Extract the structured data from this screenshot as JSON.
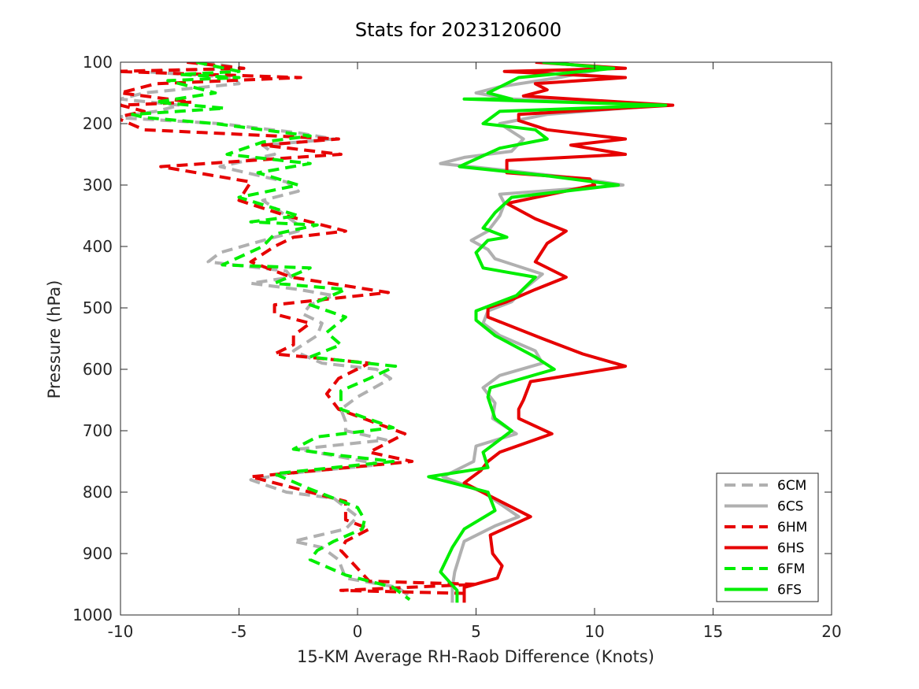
{
  "chart_data": {
    "type": "line",
    "title": "Stats for 2023120600",
    "xlabel": "15-KM Average RH-Raob Difference (Knots)",
    "ylabel": "Pressure (hPa)",
    "xlim": [
      -10,
      20
    ],
    "ylim": [
      100,
      1000
    ],
    "y_reversed": true,
    "xticks": [
      "-10",
      "-5",
      "0",
      "5",
      "10",
      "15",
      "20"
    ],
    "yticks": [
      "100",
      "200",
      "300",
      "400",
      "500",
      "600",
      "700",
      "800",
      "900",
      "1000"
    ],
    "grid": false,
    "legend_position": "bottom-right",
    "series": [
      {
        "name": "6CM",
        "color": "#b0b0b0",
        "dash": true,
        "points": [
          [
            -6.5,
            100
          ],
          [
            -4.8,
            110
          ],
          [
            -9.2,
            115
          ],
          [
            -5.2,
            125
          ],
          [
            -5.0,
            135
          ],
          [
            -9.0,
            150
          ],
          [
            -10.0,
            160
          ],
          [
            -7.5,
            170
          ],
          [
            -8.5,
            180
          ],
          [
            -10.2,
            190
          ],
          [
            -5.8,
            200
          ],
          [
            -2.5,
            215
          ],
          [
            -1.0,
            225
          ],
          [
            -4.0,
            235
          ],
          [
            -3.5,
            250
          ],
          [
            -5.8,
            270
          ],
          [
            -3.0,
            295
          ],
          [
            -2.5,
            310
          ],
          [
            -4.0,
            325
          ],
          [
            -3.2,
            345
          ],
          [
            -2.5,
            365
          ],
          [
            -2.5,
            375
          ],
          [
            -3.5,
            385
          ],
          [
            -5.8,
            410
          ],
          [
            -6.3,
            425
          ],
          [
            -3.0,
            440
          ],
          [
            -2.8,
            450
          ],
          [
            -4.5,
            460
          ],
          [
            -2.5,
            470
          ],
          [
            -1.0,
            480
          ],
          [
            -2.0,
            495
          ],
          [
            -2.3,
            510
          ],
          [
            -1.5,
            525
          ],
          [
            -1.7,
            545
          ],
          [
            -2.7,
            570
          ],
          [
            -1.5,
            590
          ],
          [
            0.8,
            600
          ],
          [
            1.4,
            615
          ],
          [
            0.0,
            645
          ],
          [
            -0.7,
            665
          ],
          [
            -0.5,
            685
          ],
          [
            -0.5,
            700
          ],
          [
            1.2,
            715
          ],
          [
            -2.5,
            730
          ],
          [
            1.0,
            755
          ],
          [
            -3.0,
            770
          ],
          [
            -4.5,
            780
          ],
          [
            -3.0,
            800
          ],
          [
            -1.0,
            810
          ],
          [
            0.0,
            840
          ],
          [
            -0.5,
            860
          ],
          [
            -2.7,
            880
          ],
          [
            -1.5,
            890
          ],
          [
            -0.8,
            910
          ],
          [
            -0.5,
            940
          ],
          [
            1.7,
            955
          ],
          [
            2.2,
            970
          ]
        ]
      },
      {
        "name": "6CS",
        "color": "#b0b0b0",
        "dash": false,
        "points": [
          [
            8.0,
            100
          ],
          [
            10.5,
            110
          ],
          [
            8.5,
            125
          ],
          [
            6.0,
            140
          ],
          [
            5.0,
            150
          ],
          [
            6.5,
            160
          ],
          [
            12.8,
            170
          ],
          [
            8.0,
            185
          ],
          [
            6.0,
            200
          ],
          [
            7.0,
            225
          ],
          [
            6.5,
            245
          ],
          [
            4.5,
            255
          ],
          [
            3.5,
            265
          ],
          [
            6.0,
            275
          ],
          [
            9.5,
            290
          ],
          [
            11.2,
            300
          ],
          [
            6.0,
            315
          ],
          [
            6.2,
            330
          ],
          [
            6.0,
            350
          ],
          [
            5.5,
            375
          ],
          [
            4.8,
            390
          ],
          [
            5.5,
            405
          ],
          [
            5.8,
            420
          ],
          [
            7.8,
            445
          ],
          [
            7.0,
            470
          ],
          [
            6.5,
            490
          ],
          [
            5.5,
            505
          ],
          [
            5.3,
            525
          ],
          [
            6.0,
            545
          ],
          [
            7.5,
            570
          ],
          [
            7.8,
            590
          ],
          [
            6.0,
            610
          ],
          [
            5.3,
            630
          ],
          [
            5.8,
            655
          ],
          [
            5.7,
            680
          ],
          [
            6.7,
            705
          ],
          [
            5.0,
            725
          ],
          [
            4.9,
            750
          ],
          [
            3.6,
            775
          ],
          [
            5.3,
            800
          ],
          [
            6.8,
            840
          ],
          [
            5.8,
            855
          ],
          [
            4.5,
            880
          ],
          [
            4.3,
            905
          ],
          [
            4.1,
            930
          ],
          [
            4.0,
            955
          ],
          [
            4.0,
            980
          ]
        ]
      },
      {
        "name": "6HM",
        "color": "#e60000",
        "dash": true,
        "points": [
          [
            -7.2,
            100
          ],
          [
            -4.8,
            110
          ],
          [
            -10.2,
            115
          ],
          [
            -2.4,
            125
          ],
          [
            -8.5,
            135
          ],
          [
            -10.0,
            150
          ],
          [
            -7.0,
            165
          ],
          [
            -10.0,
            170
          ],
          [
            -9.0,
            180
          ],
          [
            -10.2,
            190
          ],
          [
            -9.0,
            210
          ],
          [
            -0.8,
            225
          ],
          [
            -4.0,
            235
          ],
          [
            -0.7,
            250
          ],
          [
            -8.3,
            270
          ],
          [
            -4.5,
            295
          ],
          [
            -5.0,
            325
          ],
          [
            -3.0,
            350
          ],
          [
            -0.5,
            375
          ],
          [
            -2.7,
            385
          ],
          [
            -3.5,
            400
          ],
          [
            -4.5,
            425
          ],
          [
            -2.8,
            450
          ],
          [
            1.3,
            475
          ],
          [
            -3.5,
            495
          ],
          [
            -3.5,
            510
          ],
          [
            -2.0,
            525
          ],
          [
            -2.7,
            545
          ],
          [
            -2.7,
            560
          ],
          [
            -3.5,
            575
          ],
          [
            0.5,
            590
          ],
          [
            -0.8,
            615
          ],
          [
            -1.3,
            640
          ],
          [
            -0.8,
            665
          ],
          [
            2.0,
            705
          ],
          [
            0.5,
            735
          ],
          [
            2.3,
            750
          ],
          [
            -4.5,
            775
          ],
          [
            -3.0,
            790
          ],
          [
            -0.5,
            815
          ],
          [
            -0.5,
            845
          ],
          [
            0.5,
            860
          ],
          [
            -0.5,
            880
          ],
          [
            -0.7,
            895
          ],
          [
            0.5,
            945
          ],
          [
            5.0,
            950
          ],
          [
            -0.7,
            960
          ],
          [
            4.7,
            965
          ]
        ]
      },
      {
        "name": "6HS",
        "color": "#e60000",
        "dash": false,
        "points": [
          [
            7.5,
            100
          ],
          [
            11.3,
            110
          ],
          [
            6.2,
            115
          ],
          [
            11.3,
            125
          ],
          [
            7.5,
            135
          ],
          [
            8.0,
            145
          ],
          [
            7.0,
            155
          ],
          [
            13.3,
            170
          ],
          [
            6.8,
            185
          ],
          [
            6.8,
            195
          ],
          [
            8.0,
            210
          ],
          [
            11.3,
            225
          ],
          [
            9.0,
            235
          ],
          [
            11.3,
            250
          ],
          [
            6.3,
            260
          ],
          [
            6.3,
            280
          ],
          [
            9.8,
            290
          ],
          [
            10.0,
            300
          ],
          [
            6.3,
            330
          ],
          [
            7.5,
            355
          ],
          [
            8.8,
            375
          ],
          [
            8.0,
            395
          ],
          [
            7.5,
            425
          ],
          [
            8.8,
            450
          ],
          [
            7.5,
            470
          ],
          [
            6.3,
            490
          ],
          [
            5.5,
            500
          ],
          [
            5.5,
            515
          ],
          [
            7.8,
            550
          ],
          [
            9.5,
            575
          ],
          [
            11.3,
            595
          ],
          [
            7.3,
            620
          ],
          [
            7.0,
            650
          ],
          [
            6.8,
            665
          ],
          [
            6.8,
            680
          ],
          [
            8.2,
            705
          ],
          [
            6.0,
            735
          ],
          [
            5.5,
            750
          ],
          [
            5.2,
            765
          ],
          [
            4.5,
            785
          ],
          [
            7.3,
            840
          ],
          [
            5.6,
            870
          ],
          [
            5.7,
            900
          ],
          [
            6.1,
            920
          ],
          [
            5.9,
            940
          ],
          [
            4.5,
            955
          ],
          [
            4.5,
            980
          ]
        ]
      },
      {
        "name": "6FS",
        "color": "#00ee00",
        "dash": false,
        "points": [
          [
            7.8,
            100
          ],
          [
            10.8,
            110
          ],
          [
            6.8,
            125
          ],
          [
            5.5,
            150
          ],
          [
            6.5,
            160
          ],
          [
            4.5,
            160
          ],
          [
            13.0,
            170
          ],
          [
            6.0,
            180
          ],
          [
            5.3,
            200
          ],
          [
            7.5,
            210
          ],
          [
            8.0,
            225
          ],
          [
            6.0,
            240
          ],
          [
            4.3,
            270
          ],
          [
            8.0,
            285
          ],
          [
            11.0,
            300
          ],
          [
            6.5,
            320
          ],
          [
            5.8,
            345
          ],
          [
            5.3,
            370
          ],
          [
            6.3,
            385
          ],
          [
            5.5,
            390
          ],
          [
            5.0,
            410
          ],
          [
            5.3,
            435
          ],
          [
            7.5,
            450
          ],
          [
            6.7,
            480
          ],
          [
            5.0,
            505
          ],
          [
            5.0,
            520
          ],
          [
            5.8,
            545
          ],
          [
            7.5,
            580
          ],
          [
            8.3,
            600
          ],
          [
            5.6,
            630
          ],
          [
            5.5,
            645
          ],
          [
            5.8,
            680
          ],
          [
            6.5,
            700
          ],
          [
            5.3,
            735
          ],
          [
            5.5,
            760
          ],
          [
            3.0,
            775
          ],
          [
            5.5,
            800
          ],
          [
            5.8,
            830
          ],
          [
            4.5,
            860
          ],
          [
            4.0,
            890
          ],
          [
            3.5,
            930
          ],
          [
            4.2,
            960
          ],
          [
            4.2,
            980
          ]
        ]
      },
      {
        "name": "6FM",
        "color": "#00ee00",
        "dash": true,
        "points": [
          [
            -6.8,
            100
          ],
          [
            -5.0,
            115
          ],
          [
            -7.5,
            120
          ],
          [
            -5.0,
            125
          ],
          [
            -8.0,
            130
          ],
          [
            -6.0,
            150
          ],
          [
            -8.5,
            165
          ],
          [
            -5.6,
            175
          ],
          [
            -9.5,
            185
          ],
          [
            -9.0,
            190
          ],
          [
            -6.0,
            200
          ],
          [
            -3.0,
            215
          ],
          [
            -2.0,
            220
          ],
          [
            -4.0,
            230
          ],
          [
            -5.5,
            250
          ],
          [
            -2.0,
            265
          ],
          [
            -4.2,
            280
          ],
          [
            -2.5,
            300
          ],
          [
            -5.0,
            320
          ],
          [
            -2.5,
            350
          ],
          [
            -4.5,
            360
          ],
          [
            -1.7,
            365
          ],
          [
            -3.5,
            380
          ],
          [
            -4.0,
            400
          ],
          [
            -5.7,
            430
          ],
          [
            -2.0,
            435
          ],
          [
            -3.5,
            460
          ],
          [
            -0.5,
            470
          ],
          [
            -2.0,
            495
          ],
          [
            -0.5,
            515
          ],
          [
            -1.3,
            540
          ],
          [
            -0.7,
            560
          ],
          [
            -2.0,
            580
          ],
          [
            1.6,
            595
          ],
          [
            0.5,
            615
          ],
          [
            -0.7,
            635
          ],
          [
            -0.7,
            665
          ],
          [
            1.5,
            695
          ],
          [
            -1.7,
            710
          ],
          [
            -2.7,
            730
          ],
          [
            -0.8,
            740
          ],
          [
            1.5,
            750
          ],
          [
            -3.5,
            770
          ],
          [
            -2.0,
            795
          ],
          [
            0.0,
            825
          ],
          [
            0.3,
            845
          ],
          [
            0.2,
            860
          ],
          [
            -1.0,
            880
          ],
          [
            -1.7,
            895
          ],
          [
            -2.0,
            910
          ],
          [
            -0.5,
            935
          ],
          [
            1.5,
            955
          ],
          [
            2.2,
            975
          ]
        ]
      }
    ]
  }
}
